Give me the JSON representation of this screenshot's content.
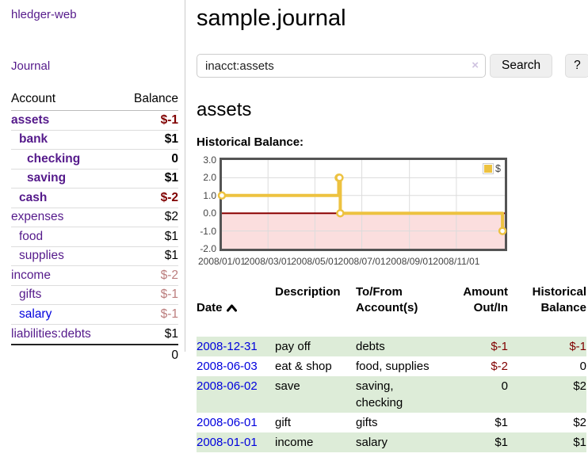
{
  "sidebar": {
    "app_title": "hledger-web",
    "nav_journal": "Journal",
    "table": {
      "col_account": "Account",
      "col_balance": "Balance",
      "rows": [
        {
          "label": "assets",
          "indent": 0,
          "bold": true,
          "link": "purple",
          "balance": "$-1",
          "bal_class": "neg"
        },
        {
          "label": "bank",
          "indent": 1,
          "bold": true,
          "link": "purple",
          "balance": "$1",
          "bal_class": ""
        },
        {
          "label": "checking",
          "indent": 2,
          "bold": true,
          "link": "purple",
          "balance": "0",
          "bal_class": ""
        },
        {
          "label": "saving",
          "indent": 2,
          "bold": true,
          "link": "purple",
          "balance": "$1",
          "bal_class": ""
        },
        {
          "label": "cash",
          "indent": 1,
          "bold": true,
          "link": "purple",
          "balance": "$-2",
          "bal_class": "neg"
        },
        {
          "label": "expenses",
          "indent": 0,
          "bold": false,
          "link": "purple",
          "balance": "$2",
          "bal_class": ""
        },
        {
          "label": "food",
          "indent": 1,
          "bold": false,
          "link": "purple",
          "balance": "$1",
          "bal_class": ""
        },
        {
          "label": "supplies",
          "indent": 1,
          "bold": false,
          "link": "purple",
          "balance": "$1",
          "bal_class": ""
        },
        {
          "label": "income",
          "indent": 0,
          "bold": false,
          "link": "purple",
          "balance": "$-2",
          "bal_class": "negfade"
        },
        {
          "label": "gifts",
          "indent": 1,
          "bold": false,
          "link": "purple",
          "balance": "$-1",
          "bal_class": "negfade"
        },
        {
          "label": "salary",
          "indent": 1,
          "bold": false,
          "link": "blue",
          "balance": "$-1",
          "bal_class": "negfade"
        },
        {
          "label": "liabilities:debts",
          "indent": 0,
          "bold": false,
          "link": "purple",
          "balance": "$1",
          "bal_class": ""
        }
      ],
      "total": "0"
    }
  },
  "main": {
    "title": "sample.journal",
    "search": {
      "value": "inacct:assets",
      "clear_icon": "×",
      "button_label": "Search",
      "help_label": "?"
    },
    "account_heading": "assets",
    "chart_label": "Historical Balance:"
  },
  "chart_data": {
    "type": "line",
    "title": "Historical Balance",
    "legend_label": "$",
    "legend_position": "top-right",
    "points": [
      {
        "date": "2008-01-01",
        "value": 1
      },
      {
        "date": "2008-06-01",
        "value": 2
      },
      {
        "date": "2008-06-02",
        "value": 2
      },
      {
        "date": "2008-06-03",
        "value": 0
      },
      {
        "date": "2008-12-31",
        "value": -1
      }
    ],
    "step": true,
    "ylim": [
      -2,
      3
    ],
    "yticks": [
      3,
      2,
      1,
      0,
      -1,
      -2
    ],
    "ytick_labels": [
      "3.0",
      "2.0",
      "1.0",
      "0.0",
      "-1.0",
      "-2.0"
    ],
    "xticks": [
      {
        "label": "2008/01/01",
        "date": "2008-01-01"
      },
      {
        "label": "2008/03/01",
        "date": "2008-03-01"
      },
      {
        "label": "2008/05/01",
        "date": "2008-05-01"
      },
      {
        "label": "2008/07/01",
        "date": "2008-07-01"
      },
      {
        "label": "2008/09/01",
        "date": "2008-09-01"
      },
      {
        "label": "2008/11/01",
        "date": "2008-11-01"
      }
    ],
    "x_domain": [
      "2008-01-01",
      "2009-01-03"
    ],
    "grid": true,
    "series_color": "#edc240",
    "zero_line_color": "#8b0000",
    "negative_fill": "#fbdede",
    "grid_color": "#dcdcdc"
  },
  "register": {
    "headers": {
      "date": "Date",
      "description": "Description",
      "accounts": "To/From\nAccount(s)",
      "amount": "Amount\nOut/In",
      "balance": "Historical\nBalance"
    },
    "rows": [
      {
        "date": "2008-12-31",
        "description": "pay off",
        "accounts": "debts",
        "amount": "$-1",
        "amount_neg": true,
        "balance": "$-1",
        "balance_neg": true
      },
      {
        "date": "2008-06-03",
        "description": "eat & shop",
        "accounts": "food, supplies",
        "amount": "$-2",
        "amount_neg": true,
        "balance": "0",
        "balance_neg": false
      },
      {
        "date": "2008-06-02",
        "description": "save",
        "accounts": "saving,\nchecking",
        "amount": "0",
        "amount_neg": false,
        "balance": "$2",
        "balance_neg": false
      },
      {
        "date": "2008-06-01",
        "description": "gift",
        "accounts": "gifts",
        "amount": "$1",
        "amount_neg": false,
        "balance": "$2",
        "balance_neg": false
      },
      {
        "date": "2008-01-01",
        "description": "income",
        "accounts": "salary",
        "amount": "$1",
        "amount_neg": false,
        "balance": "$1",
        "balance_neg": false
      }
    ]
  }
}
